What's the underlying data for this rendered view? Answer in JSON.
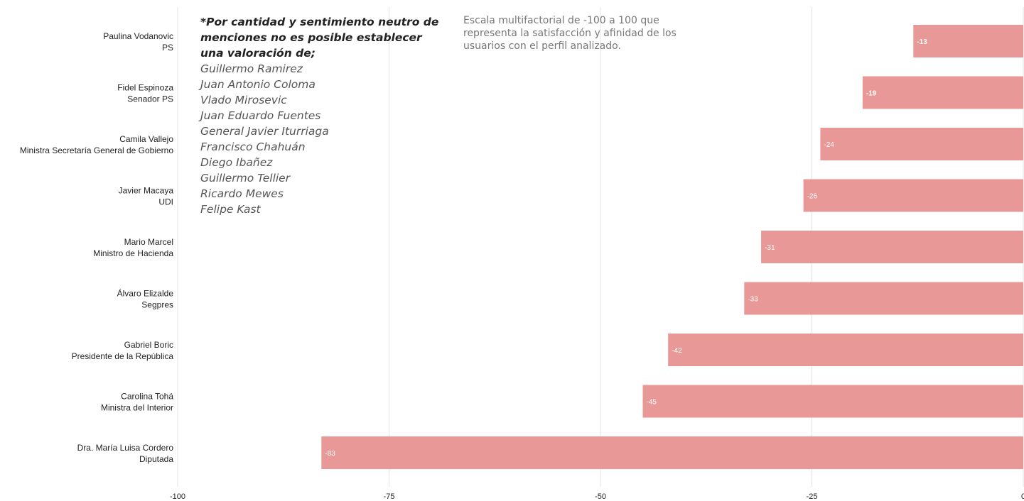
{
  "chart_data": {
    "type": "bar",
    "orientation": "horizontal",
    "categories": [
      {
        "name": "Paulina Vodanovic",
        "role": "PS"
      },
      {
        "name": "Fidel Espinoza",
        "role": "Senador PS"
      },
      {
        "name": "Camila Vallejo",
        "role": "Ministra Secretaría General de Gobierno"
      },
      {
        "name": "Javier Macaya",
        "role": "UDI"
      },
      {
        "name": "Mario Marcel",
        "role": "Ministro de Hacienda"
      },
      {
        "name": "Álvaro Elizalde",
        "role": "Segpres"
      },
      {
        "name": "Gabriel Boric",
        "role": "Presidente de la República"
      },
      {
        "name": "Carolina Tohá",
        "role": "Ministra del Interior"
      },
      {
        "name": "Dra. María Luisa Cordero",
        "role": "Diputada"
      }
    ],
    "values": [
      -13,
      -19,
      -24,
      -26,
      -31,
      -33,
      -42,
      -45,
      -83
    ],
    "value_labels": [
      "-13",
      "-19",
      "-24",
      "-26",
      "-31",
      "-33",
      "-42",
      "-45",
      "-83"
    ],
    "xlim": [
      -100,
      0
    ],
    "x_ticks": [
      -100,
      -75,
      -50,
      -25,
      0
    ],
    "x_tick_labels": [
      "-100",
      "-75",
      "-50",
      "-25",
      "0"
    ],
    "grid": true,
    "bar_color": "#e89896",
    "subtitle": "Escala multifactorial de -100 a 100 que representa la satisfacción y afinidad de los usuarios con el perfil analizado.",
    "note": {
      "title": "*Por cantidad y sentimiento neutro de menciones no es posible establecer una valoración de;",
      "names": [
        "Guillermo Ramirez",
        "Juan Antonio Coloma",
        "Vlado Mirosevic",
        "Juan Eduardo Fuentes",
        "General Javier Iturriaga",
        "Francisco Chahuán",
        "Diego Ibañez",
        "Guillermo Tellier",
        "Ricardo Mewes",
        "Felipe Kast"
      ]
    }
  }
}
